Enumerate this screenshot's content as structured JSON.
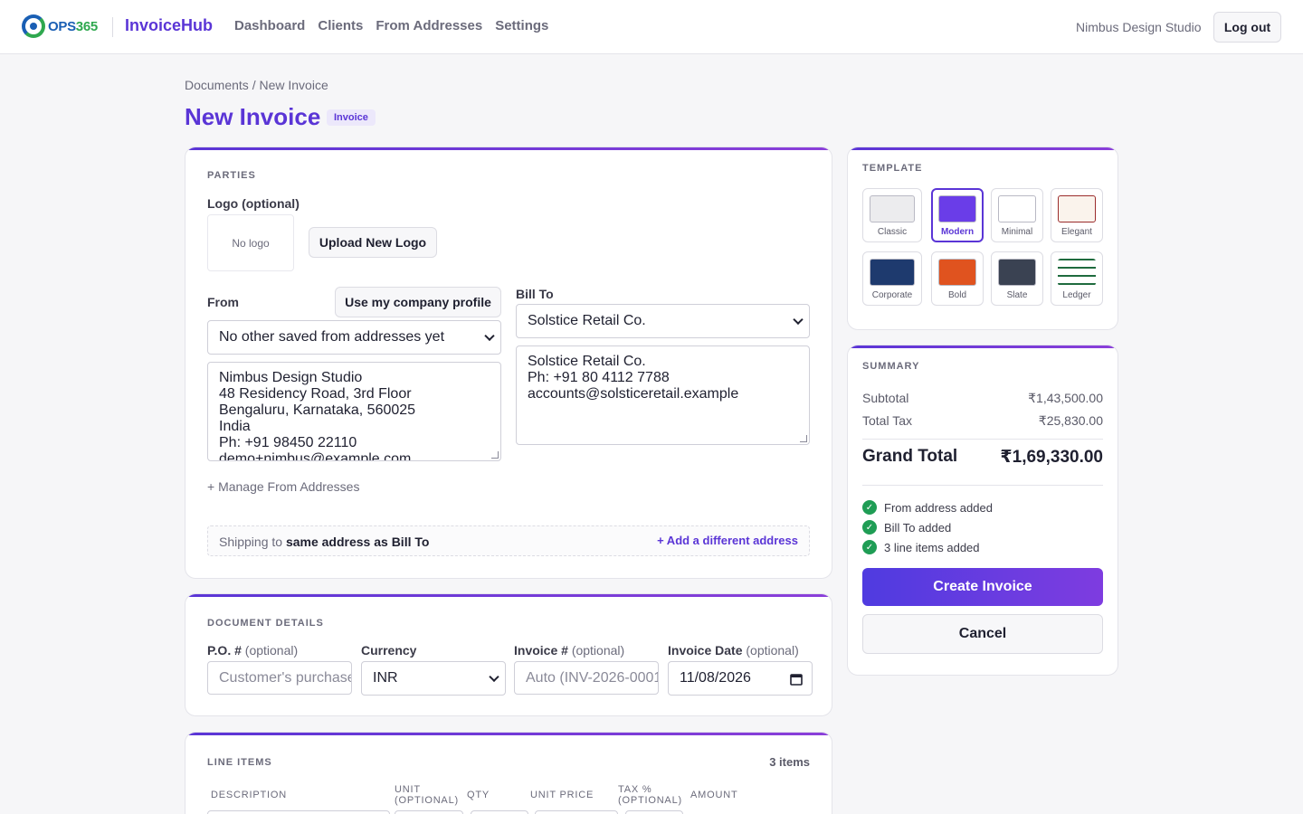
{
  "nav": {
    "logo_text_a": "OPS",
    "logo_text_b": "365",
    "brand": "InvoiceHub",
    "links": [
      "Dashboard",
      "Clients",
      "From Addresses",
      "Settings"
    ],
    "org_name": "Nimbus Design Studio",
    "logout_label": "Log out"
  },
  "page": {
    "breadcrumb": "Documents / New Invoice",
    "title": "New Invoice",
    "badge": "Invoice"
  },
  "parties": {
    "section_title": "PARTIES",
    "logo_label": "Logo (optional)",
    "no_logo": "No logo",
    "upload_label": "Upload New Logo",
    "from_label": "From",
    "use_profile_label": "Use my company profile",
    "from_select": "No other saved from addresses yet",
    "from_address_lines": [
      "Nimbus Design Studio",
      "48 Residency Road, 3rd Floor",
      "Bengaluru, Karnataka, 560025",
      "India",
      "Ph: +91 98450 22110",
      "demo+nimbus@example.com"
    ],
    "manage_label": "+ Manage From Addresses",
    "bill_to_label": "Bill To",
    "bill_to_select": "Solstice Retail Co.",
    "bill_to_lines": [
      "Solstice Retail Co.",
      "Ph: +91 80 4112 7788",
      "accounts@solsticeretail.example"
    ],
    "shipping_prefix": "Shipping to",
    "shipping_value": "same address as Bill To",
    "add_address_label": "+ Add a different address"
  },
  "details": {
    "section_title": "DOCUMENT DETAILS",
    "po_label": "P.O. #",
    "po_opt": "(optional)",
    "po_placeholder": "Customer's purchase order",
    "currency_label": "Currency",
    "currency_value": "INR",
    "invoice_label": "Invoice #",
    "invoice_opt": "(optional)",
    "invoice_placeholder": "Auto (INV-2026-0001)",
    "date_label": "Invoice Date",
    "date_opt": "(optional)",
    "date_value": "11/08/2026"
  },
  "line_items": {
    "section_title": "LINE ITEMS",
    "count": "3 items",
    "columns": [
      "DESCRIPTION",
      "UNIT (OPTIONAL)",
      "QTY",
      "UNIT PRICE",
      "TAX % (OPTIONAL)",
      "AMOUNT"
    ]
  },
  "template": {
    "section_title": "TEMPLATE",
    "selected": "Modern",
    "options": [
      {
        "name": "Classic",
        "color": "#ececee"
      },
      {
        "name": "Modern",
        "color": "#6a3de8"
      },
      {
        "name": "Minimal",
        "color": "#ffffff"
      },
      {
        "name": "Elegant",
        "color": "#faf3ec"
      },
      {
        "name": "Corporate",
        "color": "#1e3a6e"
      },
      {
        "name": "Bold",
        "color": "#e0531f"
      },
      {
        "name": "Slate",
        "color": "#3a4252"
      },
      {
        "name": "Ledger",
        "color": "#1f6b3e"
      }
    ]
  },
  "summary": {
    "section_title": "SUMMARY",
    "subtotal_label": "Subtotal",
    "subtotal_value": "₹1,43,500.00",
    "tax_label": "Total Tax",
    "tax_value": "₹25,830.00",
    "grand_label": "Grand Total",
    "grand_value": "₹1,69,330.00",
    "checks": [
      "From address added",
      "Bill To added",
      "3 line items added"
    ],
    "create_label": "Create Invoice",
    "cancel_label": "Cancel"
  },
  "colors": {
    "accent": "#5a35d6",
    "success": "#1f9d55"
  }
}
